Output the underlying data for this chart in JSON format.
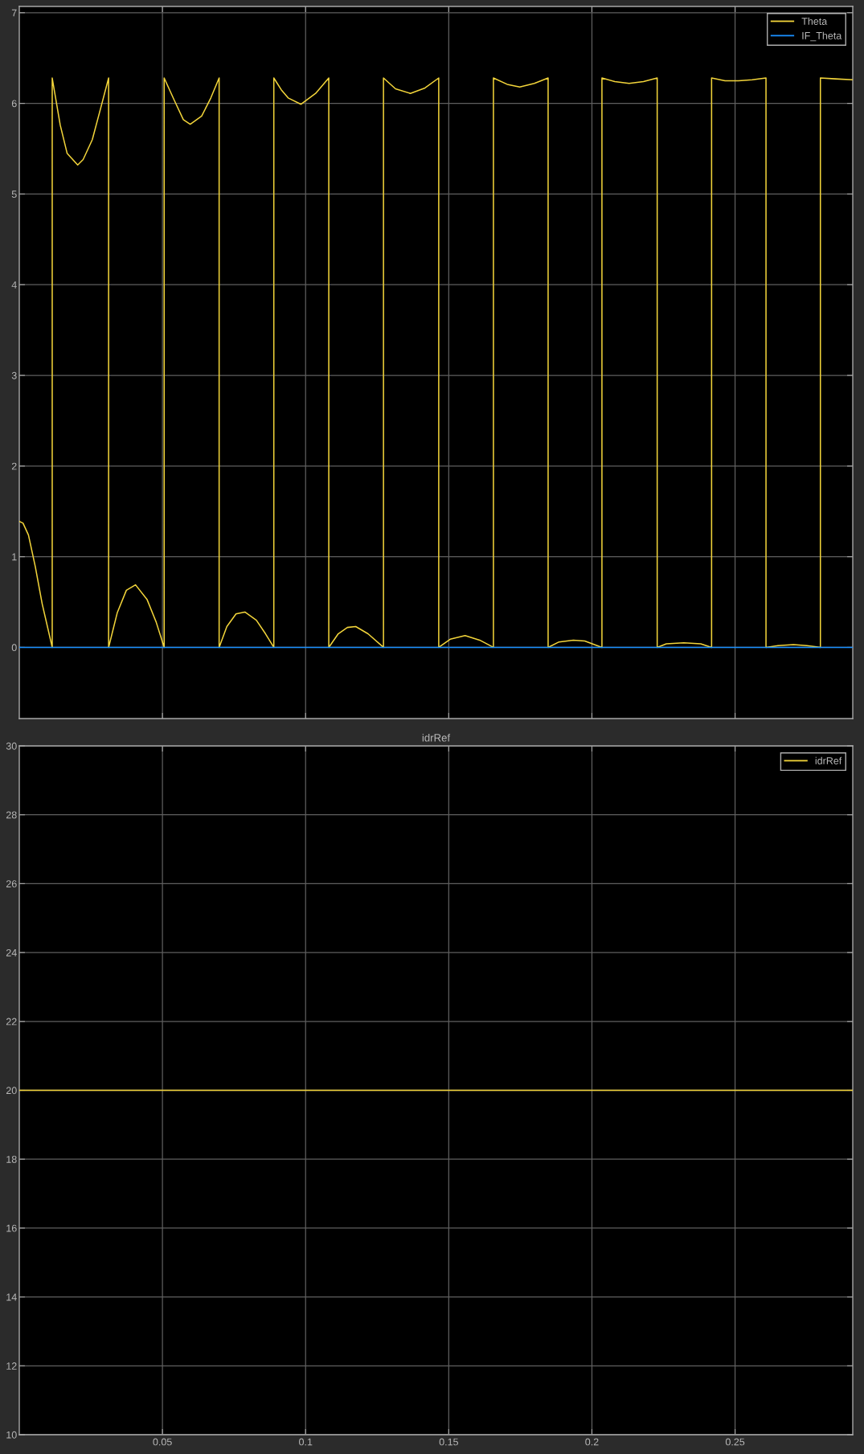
{
  "chart_data": [
    {
      "type": "line",
      "series": [
        {
          "name": "Theta",
          "color": "#f2d43a",
          "x": [
            0,
            0.0013,
            0.0032,
            0.0056,
            0.008,
            0.0115,
            0.0115,
            0.0143,
            0.0167,
            0.0204,
            0.0223,
            0.0255,
            0.0287,
            0.0312,
            0.0312,
            0.0342,
            0.0374,
            0.0406,
            0.0446,
            0.0478,
            0.0506,
            0.0506,
            0.0542,
            0.0573,
            0.0597,
            0.0637,
            0.0669,
            0.0698,
            0.0698,
            0.0725,
            0.0757,
            0.0788,
            0.0828,
            0.086,
            0.0889,
            0.0889,
            0.0915,
            0.0939,
            0.0984,
            0.1035,
            0.1081,
            0.1081,
            0.1114,
            0.1146,
            0.1175,
            0.1218,
            0.1272,
            0.1272,
            0.1314,
            0.1366,
            0.1417,
            0.1465,
            0.1465,
            0.1505,
            0.1557,
            0.1608,
            0.1656,
            0.1656,
            0.1704,
            0.1748,
            0.1799,
            0.1847,
            0.1847,
            0.1885,
            0.1935,
            0.1975,
            0.2035,
            0.2035,
            0.208,
            0.213,
            0.218,
            0.2228,
            0.2228,
            0.226,
            0.2321,
            0.238,
            0.2418,
            0.2418,
            0.2465,
            0.2512,
            0.256,
            0.2608,
            0.2608,
            0.265,
            0.2704,
            0.275,
            0.2798,
            0.2798,
            0.285,
            0.2911
          ],
          "values": [
            1.39,
            1.37,
            1.24,
            0.89,
            0.48,
            0,
            6.28,
            5.76,
            5.45,
            5.32,
            5.38,
            5.6,
            5.98,
            6.28,
            0,
            0.38,
            0.63,
            0.69,
            0.53,
            0.28,
            0,
            6.28,
            6.03,
            5.82,
            5.77,
            5.86,
            6.06,
            6.28,
            0,
            0.23,
            0.37,
            0.39,
            0.3,
            0.15,
            0,
            6.28,
            6.15,
            6.06,
            5.99,
            6.11,
            6.28,
            0,
            0.15,
            0.22,
            0.23,
            0.15,
            0,
            6.28,
            6.16,
            6.11,
            6.17,
            6.28,
            0,
            0.09,
            0.13,
            0.08,
            0,
            6.28,
            6.21,
            6.18,
            6.22,
            6.28,
            0,
            0.06,
            0.08,
            0.07,
            0,
            6.28,
            6.24,
            6.22,
            6.24,
            6.28,
            0,
            0.04,
            0.05,
            0.04,
            0,
            6.28,
            6.25,
            6.25,
            6.26,
            6.28,
            0,
            0.02,
            0.03,
            0.02,
            0,
            6.28,
            6.27,
            6.26
          ]
        },
        {
          "name": "IF_Theta",
          "color": "#1a90ff",
          "x": [
            0,
            0.2911
          ],
          "values": [
            0,
            0
          ]
        }
      ],
      "xlim": [
        0,
        0.2911
      ],
      "xticks": [
        0.05,
        0.1,
        0.15,
        0.2,
        0.25
      ],
      "ylim": [
        -0.785,
        7.069
      ],
      "yticks": [
        0,
        1,
        2,
        3,
        4,
        5,
        6,
        7
      ],
      "tick_labels": "y",
      "grid": true,
      "legend": "top right"
    },
    {
      "type": "line",
      "title": "idrRef",
      "series": [
        {
          "name": "idrRef",
          "color": "#f2d43a",
          "x": [
            0,
            0.2911
          ],
          "values": [
            20,
            20
          ]
        }
      ],
      "xlim": [
        0,
        0.2911
      ],
      "xticks": [
        0.05,
        0.1,
        0.15,
        0.2,
        0.25
      ],
      "ylim": [
        10,
        30
      ],
      "yticks": [
        10,
        12,
        14,
        16,
        18,
        20,
        22,
        24,
        26,
        28,
        30
      ],
      "grid": true,
      "legend": "top right"
    }
  ]
}
